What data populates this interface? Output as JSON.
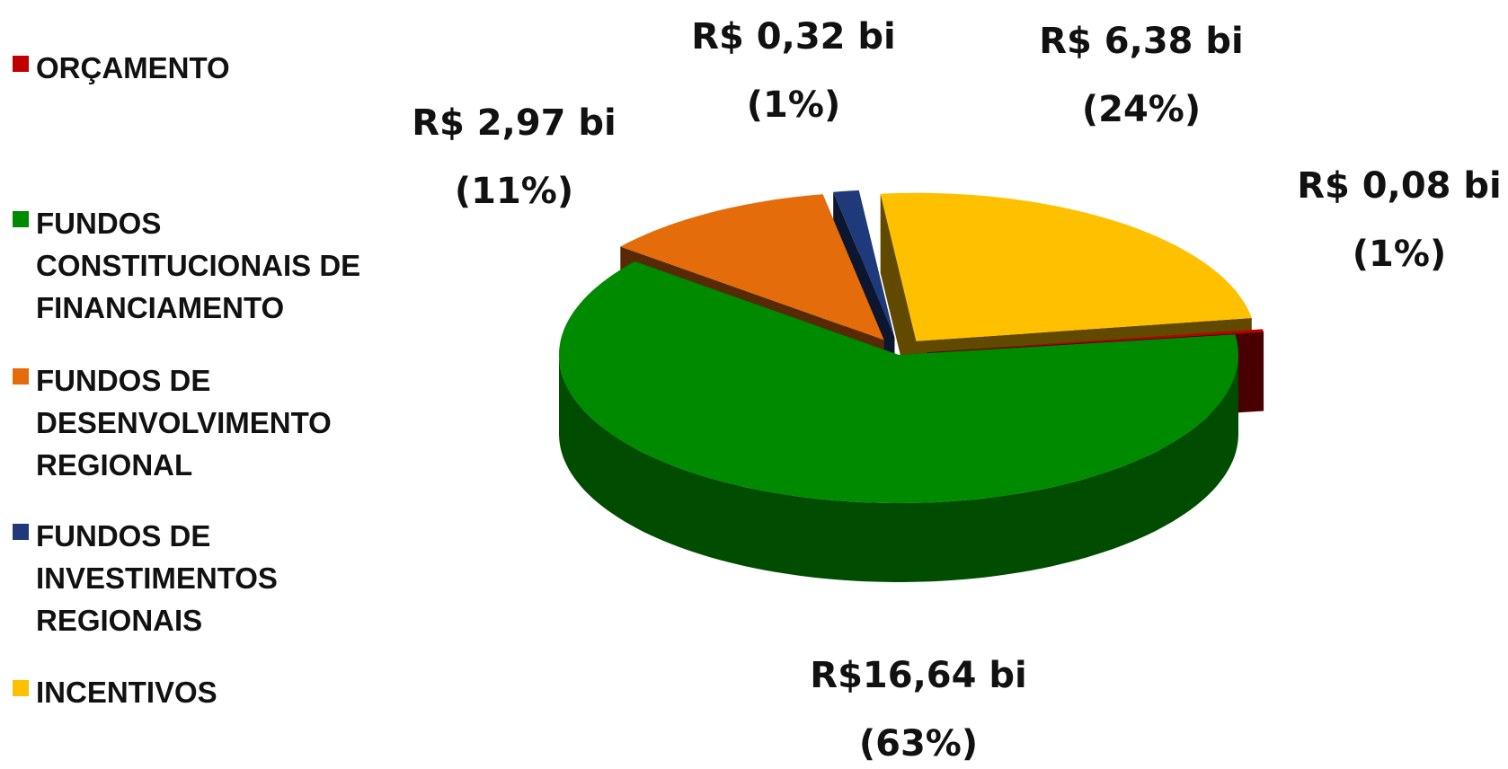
{
  "chart_data": {
    "type": "pie3d",
    "categories": [
      "ORÇAMENTO",
      "FUNDOS CONSTITUCIONAIS DE FINANCIAMENTO",
      "FUNDOS DE DESENVOLVIMENTO REGIONAL",
      "FUNDOS DE INVESTIMENTOS REGIONAIS",
      "INCENTIVOS"
    ],
    "values": [
      0.08,
      16.64,
      2.97,
      0.32,
      6.38
    ],
    "value_labels": [
      "R$ 0,08 bi",
      "R$16,64 bi",
      "R$ 2,97 bi",
      "R$ 0,32 bi",
      "R$ 6,38 bi"
    ],
    "percents": [
      1,
      63,
      11,
      1,
      24
    ],
    "percent_labels": [
      "(1%)",
      "(63%)",
      "(11%)",
      "(1%)",
      "(24%)"
    ],
    "colors": [
      "#c00000",
      "#008a00",
      "#e46c0a",
      "#1f3a7a",
      "#ffc000"
    ],
    "legend": "left"
  }
}
